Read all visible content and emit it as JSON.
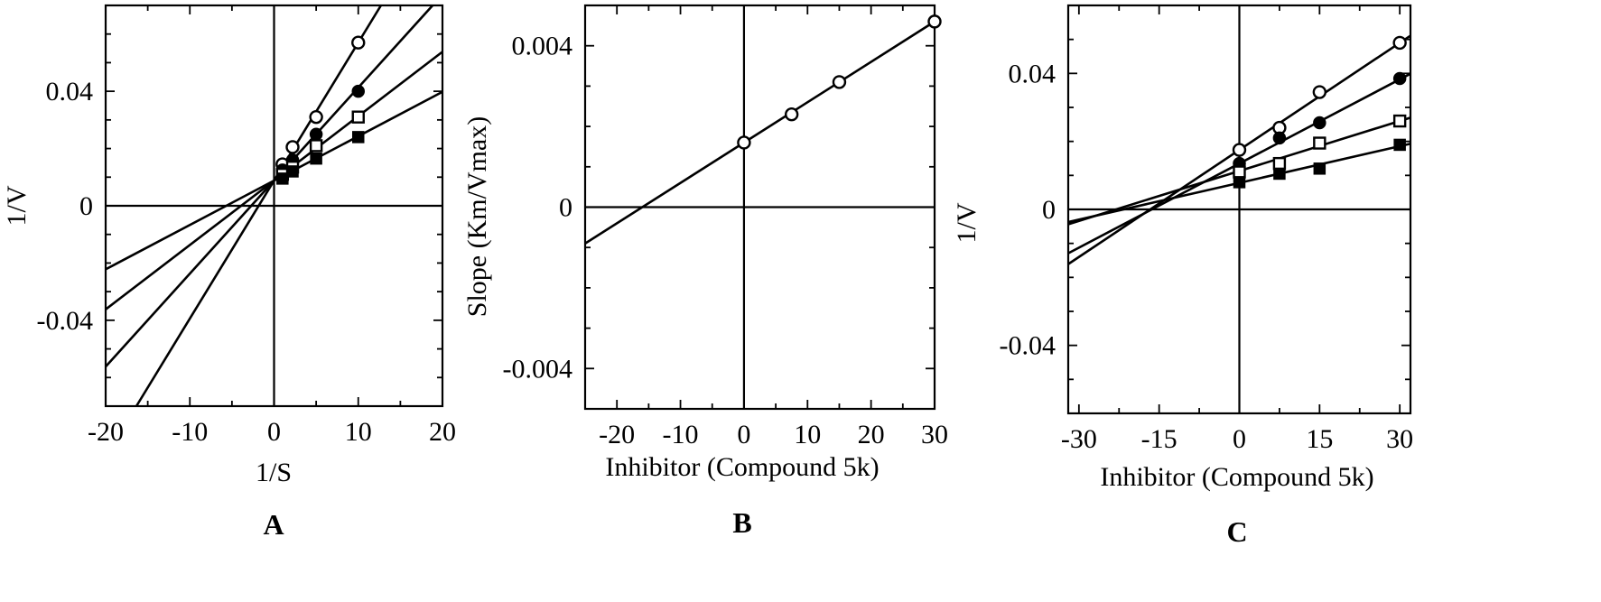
{
  "chart_data": [
    {
      "panel": "A",
      "type": "line",
      "xlabel": "1/S",
      "ylabel": "1/V",
      "xlim": [
        -20,
        20
      ],
      "ylim": [
        -0.07,
        0.07
      ],
      "xticks": [
        -20,
        -10,
        0,
        10,
        20
      ],
      "xtick_labels": [
        "-20",
        "-10",
        "0",
        "10",
        "20"
      ],
      "yticks": [
        -0.04,
        0,
        0.04
      ],
      "ytick_labels": [
        "-0.04",
        "0",
        "0.04"
      ],
      "grid": false,
      "legend": "none",
      "series": [
        {
          "marker": "open-circle",
          "x": [
            1,
            2.2,
            5,
            10
          ],
          "y": [
            0.0145,
            0.0205,
            0.031,
            0.057
          ],
          "line": {
            "slope": 0.00482,
            "intercept": 0.0088
          }
        },
        {
          "marker": "filled-circle",
          "x": [
            1,
            2.2,
            5,
            10
          ],
          "y": [
            0.0125,
            0.016,
            0.025,
            0.04
          ],
          "line": {
            "slope": 0.00325,
            "intercept": 0.0088
          }
        },
        {
          "marker": "open-square",
          "x": [
            1,
            2.2,
            5,
            10
          ],
          "y": [
            0.011,
            0.0135,
            0.021,
            0.031
          ],
          "line": {
            "slope": 0.00225,
            "intercept": 0.0088
          }
        },
        {
          "marker": "filled-square",
          "x": [
            1,
            2.2,
            5,
            10
          ],
          "y": [
            0.0095,
            0.012,
            0.0165,
            0.024
          ],
          "line": {
            "slope": 0.00155,
            "intercept": 0.0088
          }
        }
      ]
    },
    {
      "panel": "B",
      "type": "line",
      "xlabel": "Inhibitor (Compound 5k)",
      "ylabel": "Slope (Km/Vmax)",
      "xlim": [
        -25,
        30
      ],
      "ylim": [
        -0.005,
        0.005
      ],
      "xticks": [
        -20,
        -10,
        0,
        10,
        20,
        30
      ],
      "xtick_labels": [
        "-20",
        "-10",
        "0",
        "10",
        "20",
        "30"
      ],
      "yticks": [
        -0.004,
        0,
        0.004
      ],
      "ytick_labels": [
        "-0.004",
        "0",
        "0.004"
      ],
      "grid": false,
      "legend": "none",
      "series": [
        {
          "marker": "open-circle",
          "x": [
            0,
            7.5,
            15,
            30
          ],
          "y": [
            0.0016,
            0.0023,
            0.0031,
            0.0046
          ],
          "line": {
            "slope": 0.0001,
            "intercept": 0.0016
          }
        }
      ]
    },
    {
      "panel": "C",
      "type": "line",
      "xlabel": "Inhibitor (Compound 5k)",
      "ylabel": "1/V",
      "xlim": [
        -32,
        32
      ],
      "ylim": [
        -0.06,
        0.06
      ],
      "xticks": [
        -30,
        -15,
        0,
        15,
        30
      ],
      "xtick_labels": [
        "-30",
        "-15",
        "0",
        "15",
        "30"
      ],
      "yticks": [
        -0.04,
        0,
        0.04
      ],
      "ytick_labels": [
        "-0.04",
        "0",
        "0.04"
      ],
      "grid": false,
      "legend": "none",
      "series": [
        {
          "marker": "open-circle",
          "x": [
            0,
            7.5,
            15,
            30
          ],
          "y": [
            0.0175,
            0.024,
            0.0345,
            0.049
          ],
          "line": {
            "slope": 0.00105,
            "intercept": 0.0175
          }
        },
        {
          "marker": "filled-circle",
          "x": [
            0,
            7.5,
            15,
            30
          ],
          "y": [
            0.0135,
            0.021,
            0.0255,
            0.0385
          ],
          "line": {
            "slope": 0.000825,
            "intercept": 0.0135
          }
        },
        {
          "marker": "open-square",
          "x": [
            0,
            7.5,
            15,
            30
          ],
          "y": [
            0.011,
            0.0135,
            0.0195,
            0.026
          ],
          "line": {
            "slope": 0.00049,
            "intercept": 0.0113
          }
        },
        {
          "marker": "filled-square",
          "x": [
            0,
            7.5,
            15,
            30
          ],
          "y": [
            0.008,
            0.0105,
            0.012,
            0.019
          ],
          "line": {
            "slope": 0.00036,
            "intercept": 0.0078
          }
        }
      ]
    }
  ]
}
